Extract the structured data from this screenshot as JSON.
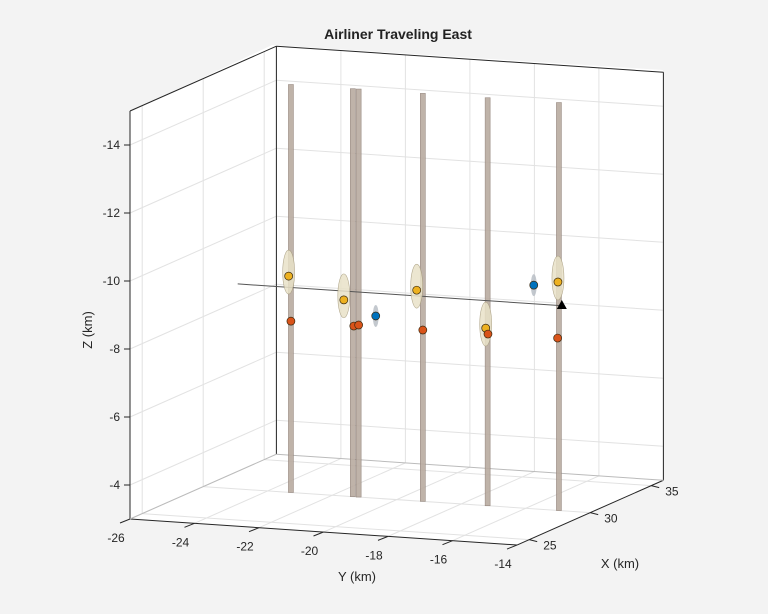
{
  "chart_data": {
    "type": "scatter",
    "projection": "3d",
    "title": "Airliner Traveling East",
    "xlabel": "X (km)",
    "ylabel": "Y (km)",
    "zlabel": "Z (km)",
    "xlim": [
      24,
      36
    ],
    "ylim": [
      -26,
      -14
    ],
    "zlim": [
      -15,
      -3
    ],
    "z_direction": "reverse",
    "grid": true,
    "xticks": [
      "25",
      "30",
      "35"
    ],
    "yticks": [
      "-26",
      "-24",
      "-22",
      "-20",
      "-18",
      "-16",
      "-14"
    ],
    "zticks": [
      "-14",
      "-12",
      "-10",
      "-8",
      "-6",
      "-4"
    ],
    "colors": {
      "pole": "#b9aba0",
      "yellow": "#EDB120",
      "orange": "#D95319",
      "blue": "#0072BD",
      "track": "#555555",
      "target": "#000000"
    },
    "poles": [
      {
        "x": 30,
        "y": -23.28
      },
      {
        "x": 30,
        "y": -21.36
      },
      {
        "x": 30,
        "y": -21.18
      },
      {
        "x": 30,
        "y": -19.19
      },
      {
        "x": 30,
        "y": -17.18
      },
      {
        "x": 30,
        "y": -14.97
      }
    ],
    "track": [
      {
        "x": 30,
        "y": -24.93,
        "z": -9.03
      },
      {
        "x": 30,
        "y": -14.79,
        "z": -9.03
      }
    ],
    "series": [
      {
        "color": "yellow",
        "points": [
          {
            "x": 30,
            "y": -23.35,
            "z": -9.36
          },
          {
            "x": 30,
            "y": -21.64,
            "z": -8.77
          },
          {
            "x": 30,
            "y": -19.38,
            "z": -9.2
          },
          {
            "x": 30,
            "y": -17.24,
            "z": -8.22
          },
          {
            "x": 30,
            "y": -15.0,
            "z": -9.72
          }
        ]
      },
      {
        "color": "orange",
        "points": [
          {
            "x": 30,
            "y": -23.28,
            "z": -8.04
          },
          {
            "x": 30,
            "y": -21.33,
            "z": -8.02
          },
          {
            "x": 30,
            "y": -21.18,
            "z": -8.06
          },
          {
            "x": 30,
            "y": -19.19,
            "z": -8.04
          },
          {
            "x": 30,
            "y": -17.17,
            "z": -8.05
          },
          {
            "x": 30,
            "y": -15.01,
            "z": -8.07
          }
        ]
      },
      {
        "color": "blue",
        "points": [
          {
            "x": 30,
            "y": -20.65,
            "z": -8.36
          },
          {
            "x": 30,
            "y": -15.75,
            "z": -9.58
          }
        ]
      },
      {
        "color": "target",
        "marker": "triangle",
        "points": [
          {
            "x": 30,
            "y": -14.88,
            "z": -9.05
          }
        ]
      }
    ]
  }
}
